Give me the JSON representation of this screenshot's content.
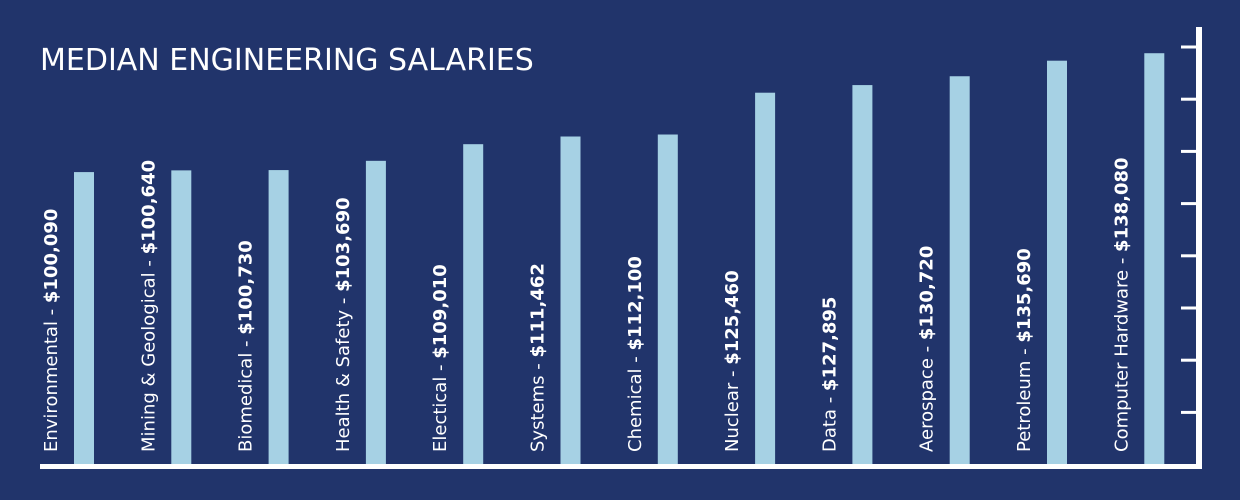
{
  "chart_data": {
    "type": "bar",
    "title": "MEDIAN ENGINEERING SALARIES",
    "categories": [
      "Environmental",
      "Mining & Geological",
      "Biomedical",
      "Health & Safety",
      "Electical",
      "Systems",
      "Chemical",
      "Nuclear",
      "Data",
      "Aerospace",
      "Petroleum",
      "Computer Hardware"
    ],
    "value_labels": [
      "$100,090",
      "$100,640",
      "$100,730",
      "$103,690",
      "$109,010",
      "$111,462",
      "$112,100",
      "$125,460",
      "$127,895",
      "$130,720",
      "$135,690",
      "$138,080"
    ],
    "values": [
      100090,
      100640,
      100730,
      103690,
      109010,
      111462,
      112100,
      125460,
      127895,
      130720,
      135690,
      138080
    ],
    "ylim": [
      6800,
      145500
    ],
    "axis_position": "right",
    "y_tick_labels_shown": false,
    "grid": false,
    "colors": {
      "background": "#21346b",
      "bar": "#a6d1e4",
      "axis": "#ffffff",
      "text": "#ffffff"
    }
  }
}
